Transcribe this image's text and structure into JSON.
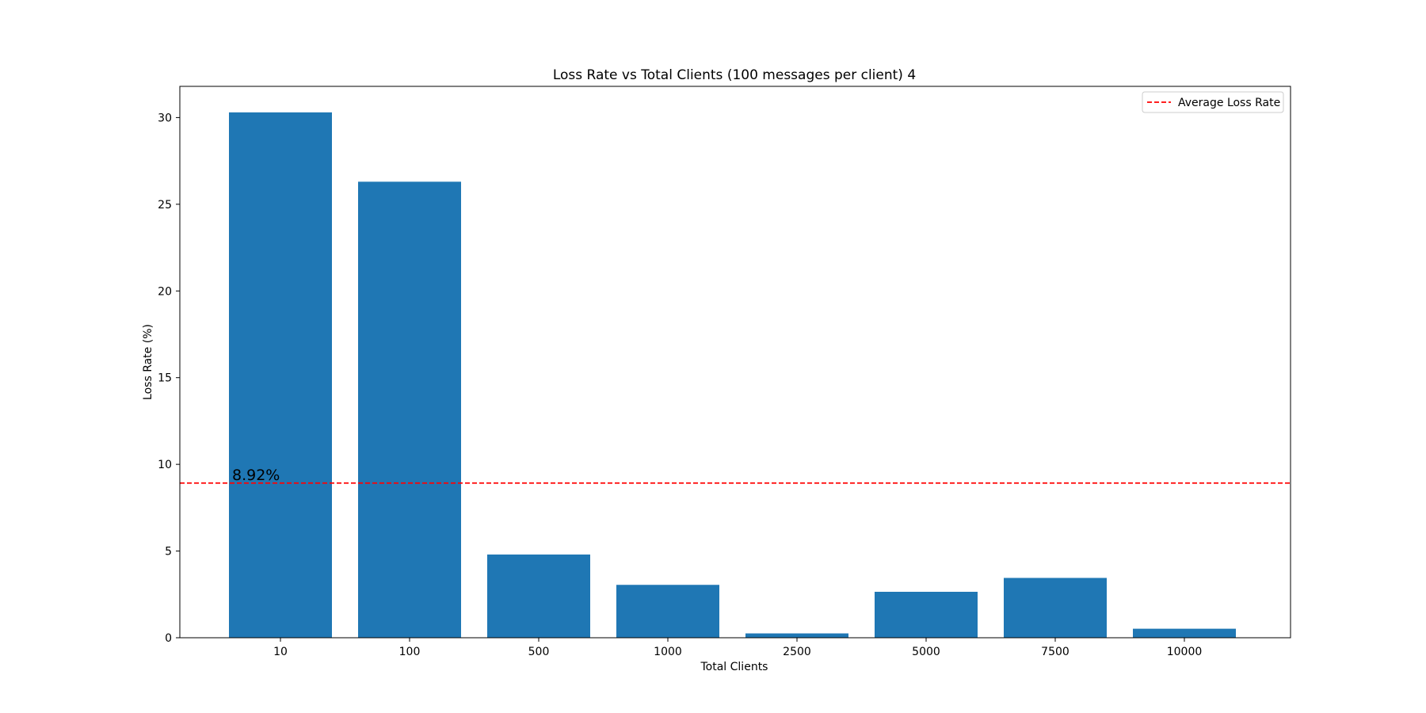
{
  "chart_data": {
    "type": "bar",
    "title": "Loss Rate vs Total Clients (100 messages per client) 4",
    "xlabel": "Total Clients",
    "ylabel": "Loss Rate (%)",
    "categories": [
      "10",
      "100",
      "500",
      "1000",
      "2500",
      "5000",
      "7500",
      "10000"
    ],
    "series": [
      {
        "values": [
          30.3,
          26.3,
          4.8,
          3.05,
          0.25,
          2.65,
          3.45,
          0.52
        ],
        "color": "#1f77b4"
      }
    ],
    "ylim": [
      0,
      31.8
    ],
    "yticks": [
      0,
      5,
      10,
      15,
      20,
      25,
      30
    ],
    "grid": false,
    "average_line": {
      "value": 8.92,
      "label": "8.92%",
      "color": "#ff0000",
      "style": "dashed"
    },
    "legend": {
      "placement": "top-right",
      "entries": [
        {
          "label": "Average Loss Rate",
          "color": "#ff0000",
          "style": "dashed"
        }
      ]
    }
  }
}
